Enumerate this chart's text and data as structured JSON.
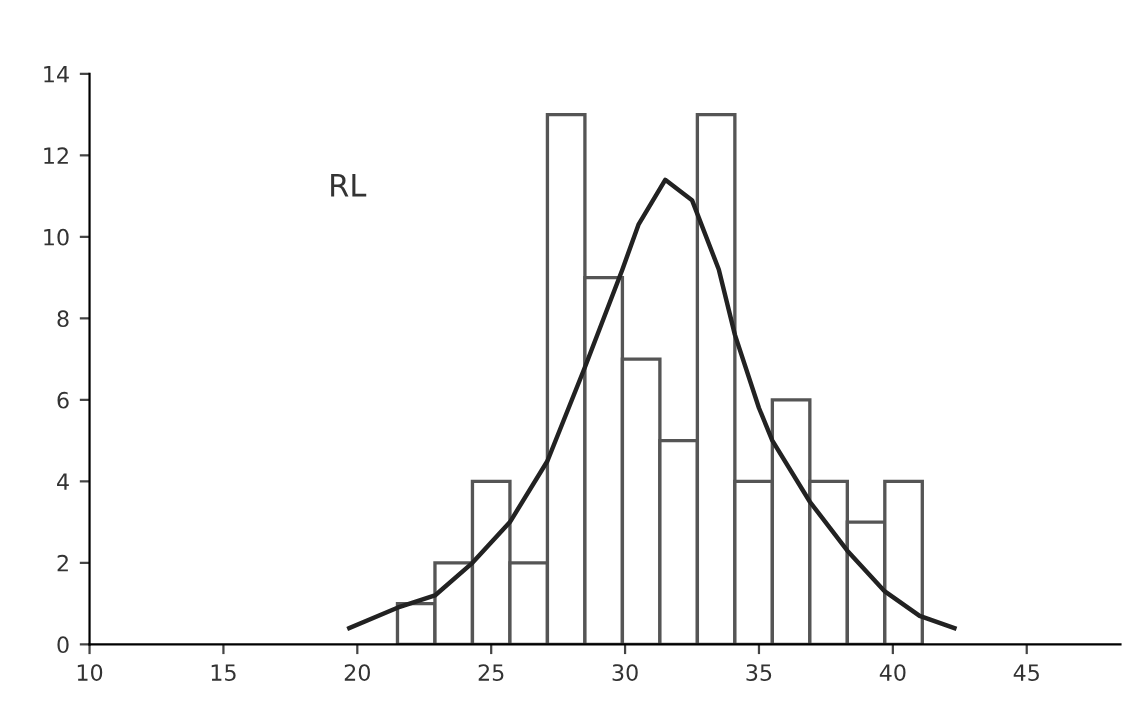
{
  "chart_data": {
    "type": "histogram",
    "xlim": [
      10,
      48.5
    ],
    "ylim": [
      0,
      14
    ],
    "xticks": [
      10,
      15,
      20,
      25,
      30,
      35,
      40,
      45
    ],
    "yticks": [
      0,
      2,
      4,
      6,
      8,
      10,
      12,
      14
    ],
    "grid": false,
    "annotations": [
      "RL"
    ],
    "color": "#555555",
    "bins": [
      21.5,
      22.9,
      24.3,
      25.7,
      27.1,
      28.5,
      29.9,
      31.3,
      32.7,
      34.1,
      35.5,
      36.9,
      38.3,
      39.7,
      41.1
    ],
    "values": [
      1,
      2,
      4,
      2,
      13,
      9,
      7,
      5,
      13,
      4,
      6,
      4,
      3,
      4
    ],
    "series": [
      {
        "type": "line",
        "color": "#222222",
        "x": [
          19.7,
          21.5,
          22.9,
          24.3,
          25.7,
          27.1,
          28.5,
          29.9,
          30.5,
          31.5,
          32.5,
          33.5,
          34.1,
          35.0,
          35.5,
          36.9,
          38.3,
          39.7,
          41.0,
          42.3
        ],
        "values": [
          0.4,
          0.9,
          1.2,
          2.0,
          3.0,
          4.5,
          6.8,
          9.2,
          10.3,
          11.4,
          10.9,
          9.2,
          7.6,
          5.8,
          5.0,
          3.5,
          2.3,
          1.3,
          0.7,
          0.4
        ]
      }
    ]
  }
}
